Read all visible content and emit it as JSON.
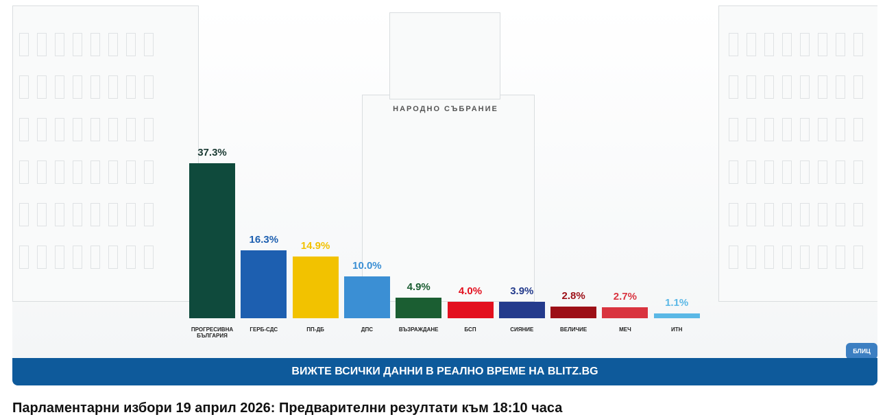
{
  "chart_data": {
    "type": "bar",
    "categories": [
      "ПРОГРЕСИВНА БЪЛГАРИЯ",
      "ГЕРБ-СДС",
      "ПП-ДБ",
      "ДПС",
      "ВЪЗРАЖДАНЕ",
      "БСП",
      "СИЯНИЕ",
      "ВЕЛИЧИЕ",
      "МЕЧ",
      "ИТН"
    ],
    "values": [
      37.3,
      16.3,
      14.9,
      10.0,
      4.9,
      4.0,
      3.9,
      2.8,
      2.7,
      1.1
    ],
    "value_labels": [
      "37.3%",
      "16.3%",
      "14.9%",
      "10.0%",
      "4.9%",
      "4.0%",
      "3.9%",
      "2.8%",
      "2.7%",
      "1.1%"
    ],
    "colors": [
      "#0f4a3c",
      "#1d5fb0",
      "#f2c200",
      "#3b8fd4",
      "#1b5e32",
      "#e3101f",
      "#243b8c",
      "#9c0f16",
      "#d9343f",
      "#5bb8e6"
    ]
  },
  "background_sign": "НАРОДНО СЪБРАНИЕ",
  "logo": "БЛИЦ",
  "banner": "ВИЖТЕ ВСИЧКИ ДАННИ В РЕАЛНО ВРЕМЕ НА BLITZ.BG",
  "caption": "Парламентарни избори 19 април 2026: Предварителни резултати към 18:10 часа"
}
